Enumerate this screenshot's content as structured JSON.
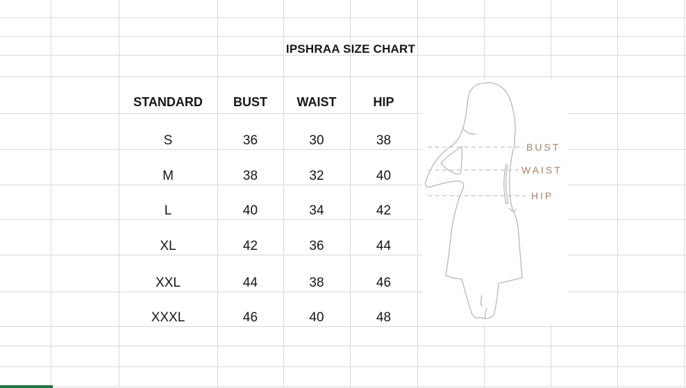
{
  "title": "IPSHRAA SIZE CHART",
  "table": {
    "columns": [
      "STANDARD",
      "BUST",
      "WAIST",
      "HIP"
    ],
    "rows": [
      [
        "S",
        "36",
        "30",
        "38"
      ],
      [
        "M",
        "38",
        "32",
        "40"
      ],
      [
        "L",
        "40",
        "34",
        "42"
      ],
      [
        "XL",
        "42",
        "36",
        "44"
      ],
      [
        "XXL",
        "44",
        "38",
        "46"
      ],
      [
        "XXXL",
        "46",
        "40",
        "48"
      ]
    ]
  },
  "figure": {
    "labels": {
      "bust": "BUST",
      "waist": "WAIST",
      "hip": "HIP"
    }
  },
  "colors": {
    "label_accent": "#a87e64",
    "gridline": "#d9d9d9",
    "green_bar": "#1f7245",
    "figure_outline": "#b7b7b7",
    "dash_line": "#cbcbcb",
    "text": "#161616"
  }
}
